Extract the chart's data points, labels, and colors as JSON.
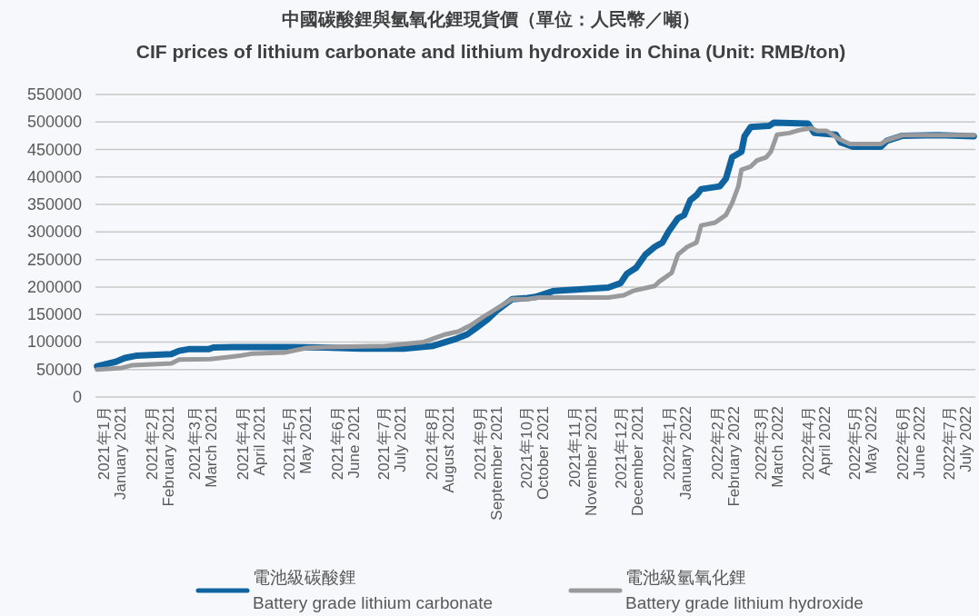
{
  "chart_data": {
    "type": "line",
    "title": "中國碳酸鋰與氫氧化鋰現貨價（單位：人民幣／噸）",
    "subtitle": "CIF prices of lithium carbonate and lithium hydroxide in China (Unit: RMB/ton)",
    "xlim": [
      "2020-12-25",
      "2022-07-16"
    ],
    "xticks": [
      {
        "value": "2021-01",
        "label": "2021年1月\nJanuary 2021"
      },
      {
        "value": "2021-02",
        "label": "2021年2月\nFebruary 2021"
      },
      {
        "value": "2021-03",
        "label": "2021年3月\nMarch 2021"
      },
      {
        "value": "2021-04",
        "label": "2021年4月\nApril 2021"
      },
      {
        "value": "2021-05",
        "label": "2021年5月\nMay 2021"
      },
      {
        "value": "2021-06",
        "label": "2021年6月\nJune 2021"
      },
      {
        "value": "2021-07",
        "label": "2021年7月\nJuly 2021"
      },
      {
        "value": "2021-08",
        "label": "2021年8月\nAugust 2021"
      },
      {
        "value": "2021-09",
        "label": "2021年9月\nSeptember 2021"
      },
      {
        "value": "2021-10",
        "label": "2021年10月\nOctober 2021"
      },
      {
        "value": "2021-11",
        "label": "2021年11月\nNovember 2021"
      },
      {
        "value": "2021-12",
        "label": "2021年12月\nDecember 2021"
      },
      {
        "value": "2022-01",
        "label": "2022年1月\nJanuary 2022"
      },
      {
        "value": "2022-02",
        "label": "2022年2月\nFebruary 2022"
      },
      {
        "value": "2022-03",
        "label": "2022年3月\nMarch 2022"
      },
      {
        "value": "2022-04",
        "label": "2022年4月\nApril 2022"
      },
      {
        "value": "2022-05",
        "label": "2022年5月\nMay 2022"
      },
      {
        "value": "2022-06",
        "label": "2022年6月\nJune 2022"
      },
      {
        "value": "2022-07",
        "label": "2022年7月\nJuly 2022"
      }
    ],
    "ylim": [
      0,
      550000
    ],
    "yticks": [
      0,
      50000,
      100000,
      150000,
      200000,
      250000,
      300000,
      350000,
      400000,
      450000,
      500000,
      550000
    ],
    "grid": "y",
    "legend": "bottom",
    "series": [
      {
        "name": "電池級碳酸鋰\nBattery grade lithium carbonate",
        "color": "#0f64a0",
        "x": [
          "2020-12-26",
          "2021-01-07",
          "2021-01-13",
          "2021-01-20",
          "2021-02-12",
          "2021-02-17",
          "2021-02-23",
          "2021-03-08",
          "2021-03-11",
          "2021-03-24",
          "2021-05-02",
          "2021-05-22",
          "2021-06-14",
          "2021-07-12",
          "2021-07-31",
          "2021-08-14",
          "2021-08-22",
          "2021-08-27",
          "2021-09-04",
          "2021-09-10",
          "2021-09-20",
          "2021-09-30",
          "2021-10-05",
          "2021-10-17",
          "2021-11-21",
          "2021-11-29",
          "2021-12-03",
          "2021-12-09",
          "2021-12-15",
          "2021-12-21",
          "2021-12-26",
          "2021-12-30",
          "2022-01-05",
          "2022-01-09",
          "2022-01-13",
          "2022-01-17",
          "2022-01-20",
          "2022-02-01",
          "2022-02-05",
          "2022-02-09",
          "2022-02-15",
          "2022-02-17",
          "2022-02-21",
          "2022-03-05",
          "2022-03-08",
          "2022-03-30",
          "2022-04-03",
          "2022-04-17",
          "2022-04-20",
          "2022-04-28",
          "2022-05-16",
          "2022-05-20",
          "2022-05-30",
          "2022-06-22",
          "2022-07-15"
        ],
        "values": [
          56000,
          64000,
          71000,
          75000,
          78000,
          84000,
          87000,
          87000,
          90000,
          91000,
          91000,
          90000,
          88000,
          88000,
          93000,
          105000,
          114000,
          124000,
          141000,
          157000,
          178000,
          180000,
          182000,
          193000,
          199000,
          207000,
          224000,
          235000,
          259000,
          273000,
          281000,
          301000,
          325000,
          331000,
          358000,
          367000,
          378000,
          383000,
          397000,
          436000,
          446000,
          474000,
          491000,
          493000,
          499000,
          497000,
          480000,
          477000,
          463000,
          455000,
          455000,
          466000,
          475000,
          476000,
          474000
        ]
      },
      {
        "name": "電池級氫氧化鋰\nBattery grade lithium hydroxide",
        "color": "#9a9a9c",
        "x": [
          "2020-12-26",
          "2021-01-11",
          "2021-01-18",
          "2021-02-12",
          "2021-02-17",
          "2021-03-09",
          "2021-03-28",
          "2021-04-05",
          "2021-04-26",
          "2021-05-10",
          "2021-05-22",
          "2021-06-30",
          "2021-07-25",
          "2021-08-08",
          "2021-08-16",
          "2021-08-24",
          "2021-09-02",
          "2021-09-10",
          "2021-09-20",
          "2021-09-30",
          "2021-10-07",
          "2021-11-21",
          "2021-12-01",
          "2021-12-07",
          "2021-12-21",
          "2021-12-24",
          "2022-01-01",
          "2022-01-05",
          "2022-01-11",
          "2022-01-17",
          "2022-01-20",
          "2022-01-29",
          "2022-02-05",
          "2022-02-09",
          "2022-02-13",
          "2022-02-15",
          "2022-02-21",
          "2022-02-25",
          "2022-03-03",
          "2022-03-06",
          "2022-03-10",
          "2022-03-18",
          "2022-03-24",
          "2022-04-01",
          "2022-04-05",
          "2022-04-11",
          "2022-04-19",
          "2022-04-26",
          "2022-05-16",
          "2022-05-20",
          "2022-05-30",
          "2022-07-15"
        ],
        "values": [
          50000,
          53000,
          58000,
          61000,
          68000,
          69000,
          75000,
          79000,
          81000,
          89000,
          91000,
          93000,
          100000,
          114000,
          119000,
          130000,
          147000,
          161000,
          178000,
          178000,
          181000,
          181000,
          185000,
          193000,
          202000,
          210000,
          226000,
          259000,
          273000,
          281000,
          312000,
          317000,
          331000,
          353000,
          383000,
          413000,
          419000,
          430000,
          436000,
          446000,
          477000,
          480000,
          485000,
          489000,
          484000,
          484000,
          469000,
          460000,
          460000,
          467000,
          476000,
          476000
        ]
      }
    ]
  }
}
